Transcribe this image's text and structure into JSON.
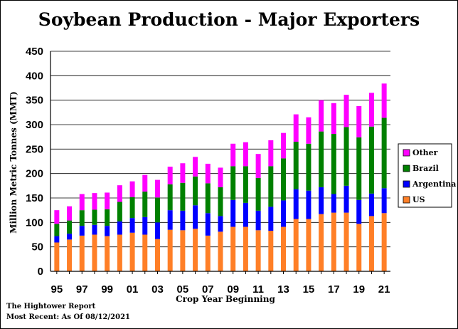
{
  "chart_data": {
    "type": "bar",
    "stacked": true,
    "title": "Soybean Production - Major Exporters",
    "xlabel": "Crop Year Beginning",
    "ylabel": "Million Metric Tonnes  (MMT)",
    "ylim": [
      0,
      450
    ],
    "yticks": [
      0,
      50,
      100,
      150,
      200,
      250,
      300,
      350,
      400,
      450
    ],
    "grid": true,
    "legend_position": "right",
    "categories": [
      "95",
      "96",
      "97",
      "98",
      "99",
      "00",
      "01",
      "02",
      "03",
      "04",
      "05",
      "06",
      "07",
      "08",
      "09",
      "10",
      "11",
      "12",
      "13",
      "14",
      "15",
      "16",
      "17",
      "18",
      "19",
      "20",
      "21"
    ],
    "xtick_labels": [
      "95",
      "",
      "97",
      "",
      "99",
      "",
      "01",
      "",
      "03",
      "",
      "05",
      "",
      "07",
      "",
      "09",
      "",
      "11",
      "",
      "13",
      "",
      "15",
      "",
      "17",
      "",
      "19",
      "",
      "21"
    ],
    "series": [
      {
        "name": "US",
        "color": "#ff7f27",
        "values": [
          59,
          65,
          73,
          75,
          72,
          75,
          79,
          75,
          66,
          85,
          84,
          87,
          73,
          81,
          91,
          91,
          84,
          83,
          91,
          107,
          107,
          117,
          120,
          120,
          97,
          113,
          119
        ]
      },
      {
        "name": "Argentina",
        "color": "#0000ff",
        "values": [
          13,
          12,
          20,
          20,
          21,
          27,
          30,
          36,
          34,
          40,
          40,
          48,
          46,
          32,
          55,
          49,
          40,
          49,
          54,
          61,
          58,
          55,
          38,
          55,
          49,
          46,
          51
        ]
      },
      {
        "name": "Brazil",
        "color": "#008000",
        "values": [
          25,
          27,
          32,
          31,
          34,
          40,
          43,
          52,
          51,
          53,
          57,
          59,
          61,
          59,
          69,
          75,
          67,
          83,
          86,
          97,
          96,
          114,
          123,
          120,
          128,
          137,
          144
        ]
      },
      {
        "name": "Other",
        "color": "#ff00ff",
        "values": [
          28,
          29,
          33,
          34,
          34,
          34,
          32,
          34,
          36,
          36,
          40,
          40,
          40,
          40,
          46,
          49,
          49,
          53,
          52,
          56,
          54,
          64,
          63,
          66,
          64,
          69,
          70
        ]
      }
    ]
  },
  "footer": {
    "source": "The Hightower Report",
    "recent": "Most Recent: As Of 08/12/2021"
  }
}
